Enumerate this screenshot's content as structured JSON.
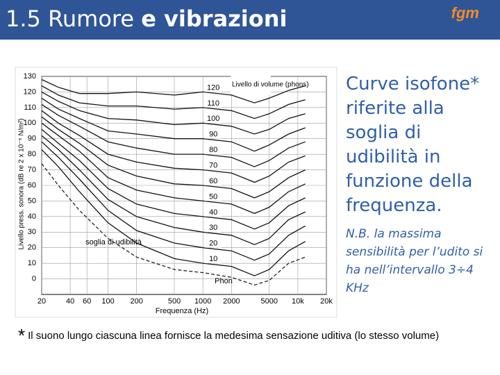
{
  "header": {
    "title_plain": "1.5 Rumore",
    "title_bold": "e vibrazioni",
    "logo": "fgm"
  },
  "side_text": {
    "main": "Curve isofone* riferite alla soglia di udibilità in funzione della frequenza.",
    "note": "N.B. la massima sensibilità per l’udito si ha nell’intervallo 3÷4 KHz"
  },
  "footnote": {
    "star": "*",
    "text": "Il suono lungo ciascuna linea fornisce la medesima sensazione uditiva (lo stesso volume)"
  },
  "chart_data": {
    "type": "line",
    "x_label": "Frequenza (Hz)",
    "y_label": "Livello press. sonora (dB re 2 x 10⁻⁵ N/m²)",
    "annotations": [
      "Livello di volume (phons)",
      "Phon"
    ],
    "log_x": true,
    "grid": true,
    "xlim": [
      20,
      20000
    ],
    "xticks": [
      20,
      40,
      60,
      100,
      200,
      500,
      1000,
      2000,
      5000,
      {
        "value": 10000,
        "label": "10k"
      },
      {
        "value": 20000,
        "label": "20k"
      }
    ],
    "ylim": [
      -10,
      130
    ],
    "yticks": [
      0,
      10,
      20,
      30,
      40,
      50,
      60,
      70,
      80,
      90,
      100,
      110,
      120,
      130
    ],
    "x": [
      20,
      30,
      50,
      100,
      200,
      500,
      1000,
      2000,
      3500,
      5000,
      8000,
      12000
    ],
    "series": [
      {
        "name": "soglia di udibilità",
        "color": "#222222",
        "line_style": "dashed",
        "values": [
          74,
          60,
          44,
          26,
          14,
          6,
          4,
          1,
          -4,
          -1,
          10,
          14
        ]
      },
      {
        "name": "10",
        "color": "#111111",
        "values": [
          83,
          72,
          56,
          36,
          23,
          13,
          10,
          8,
          2,
          6,
          18,
          24
        ]
      },
      {
        "name": "20",
        "color": "#111111",
        "values": [
          88,
          78,
          64,
          44,
          31,
          23,
          20,
          18,
          12,
          16,
          28,
          34
        ]
      },
      {
        "name": "30",
        "color": "#111111",
        "values": [
          92,
          83,
          70,
          51,
          40,
          33,
          30,
          28,
          22,
          26,
          38,
          43
        ]
      },
      {
        "name": "40",
        "color": "#111111",
        "values": [
          96,
          87,
          76,
          58,
          48,
          42,
          40,
          38,
          32,
          36,
          47,
          52
        ]
      },
      {
        "name": "50",
        "color": "#111111",
        "values": [
          100,
          92,
          82,
          65,
          57,
          52,
          50,
          48,
          42,
          46,
          56,
          61
        ]
      },
      {
        "name": "60",
        "color": "#111111",
        "values": [
          104,
          96,
          87,
          73,
          66,
          61,
          60,
          58,
          52,
          56,
          65,
          70
        ]
      },
      {
        "name": "70",
        "color": "#111111",
        "values": [
          108,
          100,
          92,
          80,
          75,
          71,
          70,
          68,
          62,
          66,
          75,
          79
        ]
      },
      {
        "name": "80",
        "color": "#111111",
        "values": [
          112,
          105,
          98,
          88,
          84,
          80,
          80,
          78,
          72,
          76,
          84,
          88
        ]
      },
      {
        "name": "90",
        "color": "#111111",
        "values": [
          116,
          109,
          103,
          95,
          93,
          90,
          90,
          88,
          82,
          86,
          93,
          97
        ]
      },
      {
        "name": "100",
        "color": "#111111",
        "values": [
          120,
          114,
          108,
          103,
          102,
          99,
          100,
          98,
          93,
          96,
          103,
          106
        ]
      },
      {
        "name": "110",
        "color": "#111111",
        "values": [
          124,
          118,
          113,
          111,
          111,
          109,
          110,
          108,
          103,
          106,
          112,
          115
        ]
      },
      {
        "name": "120",
        "color": "#111111",
        "values": [
          128,
          123,
          119,
          119,
          120,
          118,
          120,
          118,
          113,
          116,
          121,
          124
        ]
      }
    ]
  }
}
